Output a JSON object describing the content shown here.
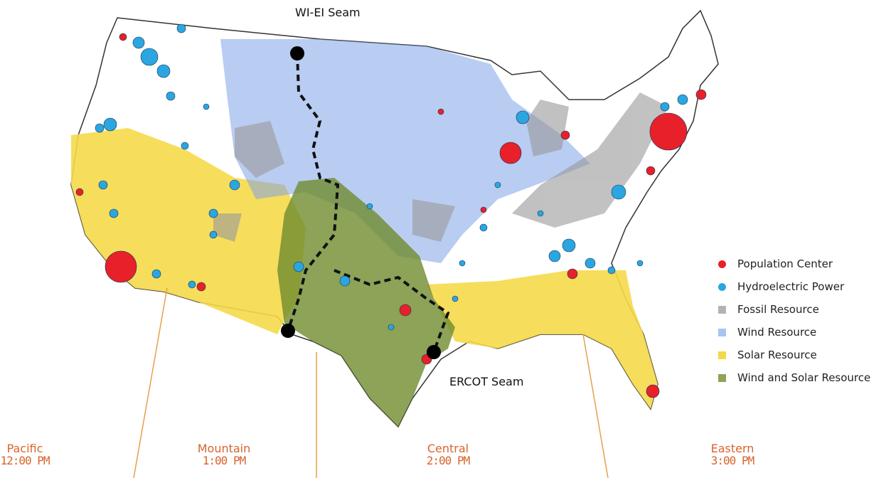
{
  "seams": {
    "north": "WI-EI Seam",
    "south": "ERCOT Seam"
  },
  "legend": [
    {
      "label": "Population Center",
      "color": "#e8202a",
      "shape": "circle"
    },
    {
      "label": "Hydroelectric Power",
      "color": "#2ba6e0",
      "shape": "circle"
    },
    {
      "label": "Fossil Resource",
      "color": "#b3b3b3",
      "shape": "square"
    },
    {
      "label": "Wind Resource",
      "color": "#a9c4f2",
      "shape": "square"
    },
    {
      "label": "Solar Resource",
      "color": "#f5d94a",
      "shape": "square"
    },
    {
      "label": "Wind and Solar Resource",
      "color": "#8fa359",
      "shape": "square"
    }
  ],
  "time_zones": [
    {
      "name": "Pacific",
      "time": "12:00 PM"
    },
    {
      "name": "Mountain",
      "time": "1:00 PM"
    },
    {
      "name": "Central",
      "time": "2:00 PM"
    },
    {
      "name": "Eastern",
      "time": "3:00 PM"
    }
  ],
  "colors": {
    "time_zone_line": "#e8a04a",
    "seam_line": "#111111"
  }
}
